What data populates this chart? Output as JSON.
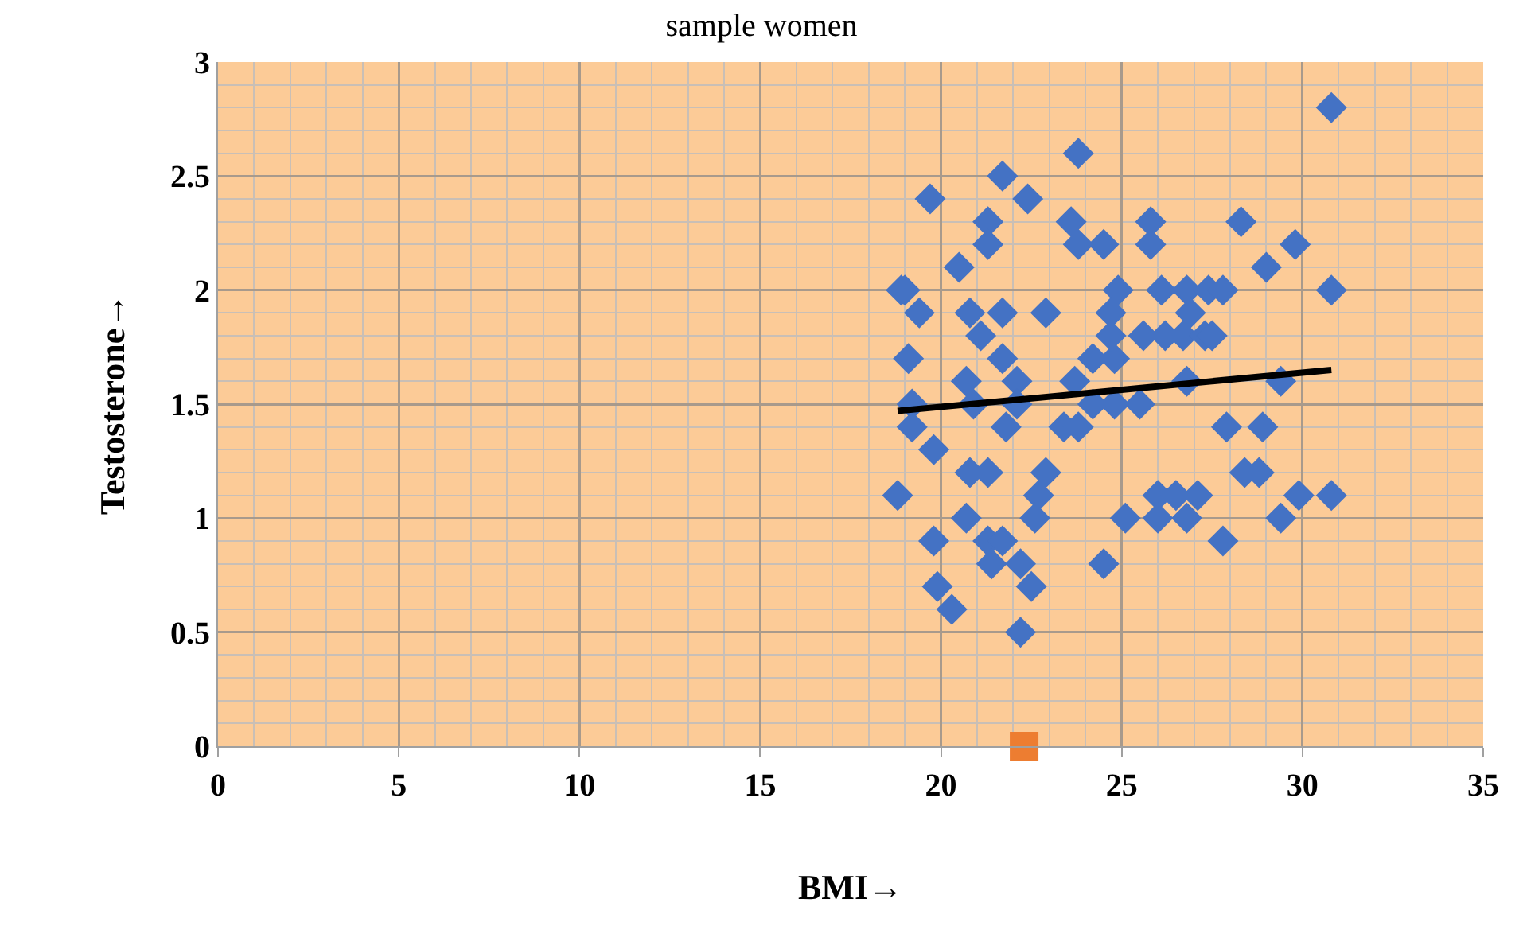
{
  "chart_data": {
    "type": "scatter",
    "title": "sample women",
    "xlabel": "BMI→",
    "ylabel": "Testosterone→",
    "xlim": [
      0,
      35
    ],
    "xticks": [
      0,
      5,
      10,
      15,
      20,
      25,
      30,
      35
    ],
    "ylim": [
      0,
      3
    ],
    "yticks": [
      0,
      0.5,
      1,
      1.5,
      2,
      2.5,
      3
    ],
    "grid": true,
    "marker": "diamond",
    "series": [
      {
        "color": "#4472c4",
        "x": [
          23.8,
          21.7,
          19.7,
          22.4,
          21.3,
          21.3,
          23.6,
          23.8,
          24.5,
          25.8,
          25.8,
          20.5,
          18.9,
          19.0,
          19.4,
          20.8,
          21.7,
          22.9,
          24.9,
          26.1,
          24.7,
          21.1,
          19.1,
          21.7,
          24.2,
          24.8,
          24.7,
          25.6,
          26.2,
          20.7,
          22.1,
          23.7,
          19.2,
          20.9,
          22.1,
          24.2,
          24.8,
          25.5,
          19.2,
          21.8,
          23.4,
          23.8,
          19.8,
          20.8,
          21.3,
          22.9,
          22.7,
          18.8,
          25.1,
          26.0,
          26.0,
          20.7,
          22.6,
          19.8,
          21.3,
          21.7,
          21.4,
          22.2,
          24.5,
          19.9,
          22.5,
          20.3,
          22.2,
          30.8,
          28.3,
          29.8,
          29.0,
          26.8,
          27.4,
          27.8,
          30.8,
          26.9,
          26.7,
          27.3,
          27.5,
          26.8,
          29.4,
          27.9,
          28.9,
          28.4,
          28.8,
          26.5,
          27.1,
          29.9,
          30.8,
          26.8,
          29.4,
          27.8
        ],
        "values": [
          2.6,
          2.5,
          2.4,
          2.4,
          2.3,
          2.2,
          2.3,
          2.2,
          2.2,
          2.3,
          2.2,
          2.1,
          2.0,
          2.0,
          1.9,
          1.9,
          1.9,
          1.9,
          2.0,
          2.0,
          1.9,
          1.8,
          1.7,
          1.7,
          1.7,
          1.7,
          1.8,
          1.8,
          1.8,
          1.6,
          1.6,
          1.6,
          1.5,
          1.5,
          1.5,
          1.5,
          1.5,
          1.5,
          1.4,
          1.4,
          1.4,
          1.4,
          1.3,
          1.2,
          1.2,
          1.2,
          1.1,
          1.1,
          1.0,
          1.1,
          1.0,
          1.0,
          1.0,
          0.9,
          0.9,
          0.9,
          0.8,
          0.8,
          0.8,
          0.7,
          0.7,
          0.6,
          0.5,
          2.8,
          2.3,
          2.2,
          2.1,
          2.0,
          2.0,
          2.0,
          2.0,
          1.9,
          1.8,
          1.8,
          1.8,
          1.6,
          1.6,
          1.4,
          1.4,
          1.2,
          1.2,
          1.1,
          1.1,
          1.1,
          1.1,
          1.0,
          1.0,
          0.9
        ]
      },
      {
        "color": "#ed7d31",
        "marker": "square",
        "x": [
          22.3
        ],
        "values": [
          0
        ]
      },
      {
        "type": "line",
        "color": "#000000",
        "marker": "none",
        "x": [
          18.8,
          30.8
        ],
        "values": [
          1.47,
          1.65
        ]
      }
    ]
  }
}
